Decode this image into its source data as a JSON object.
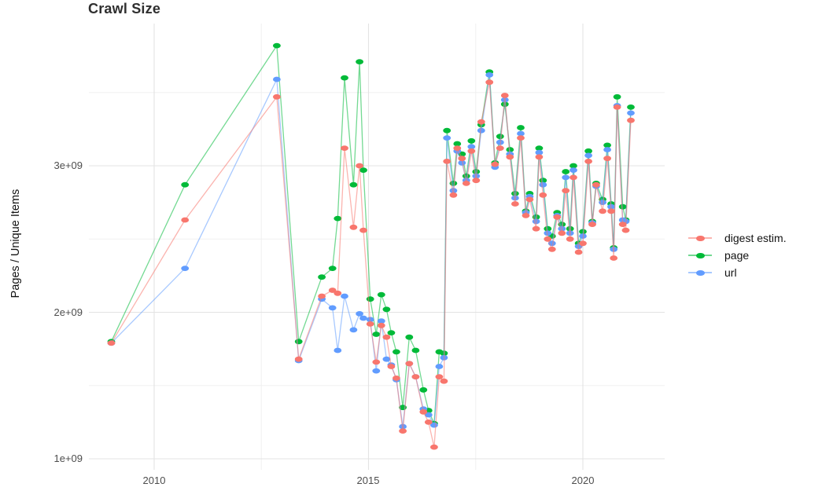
{
  "title": "Crawl Size",
  "y_axis_title": "Pages / Unique Items",
  "legend": {
    "position": "right",
    "items": [
      {
        "label": "digest estim.",
        "color": "#F8766D"
      },
      {
        "label": "page",
        "color": "#00BA38"
      },
      {
        "label": "url",
        "color": "#619CFF"
      }
    ]
  },
  "chart_data": {
    "type": "line",
    "title": "Crawl Size",
    "xlabel": "",
    "ylabel": "Pages / Unique Items",
    "x_units": "year (decimal)",
    "y_units": "count (billions; axis shows 1e+09 notation)",
    "xlim": [
      2008.48,
      2021.91
    ],
    "ylim_billions": [
      0.91,
      3.97
    ],
    "grid": true,
    "background": "#ffffff",
    "gridline_major_color": "#e3e3e3",
    "gridline_minor_color": "#f0f0f0",
    "x_ticks": [
      {
        "label": "2010",
        "value": 2010
      },
      {
        "label": "2015",
        "value": 2015
      },
      {
        "label": "2020",
        "value": 2020
      }
    ],
    "y_ticks": [
      {
        "label": "1e+09",
        "value": 1
      },
      {
        "label": "2e+09",
        "value": 2
      },
      {
        "label": "3e+09",
        "value": 3
      }
    ],
    "x_minor": [
      2012.5,
      2017.5
    ],
    "y_minor": [
      1.5,
      2.5,
      3.5
    ],
    "x": [
      2009.0,
      2010.72,
      2012.86,
      2013.37,
      2013.91,
      2014.16,
      2014.28,
      2014.44,
      2014.65,
      2014.79,
      2014.88,
      2015.04,
      2015.18,
      2015.3,
      2015.42,
      2015.53,
      2015.65,
      2015.8,
      2015.95,
      2016.1,
      2016.28,
      2016.4,
      2016.53,
      2016.65,
      2016.76,
      2016.83,
      2016.98,
      2017.07,
      2017.18,
      2017.28,
      2017.4,
      2017.51,
      2017.63,
      2017.82,
      2017.95,
      2018.07,
      2018.18,
      2018.3,
      2018.42,
      2018.55,
      2018.67,
      2018.76,
      2018.91,
      2018.98,
      2019.07,
      2019.18,
      2019.28,
      2019.4,
      2019.51,
      2019.6,
      2019.7,
      2019.78,
      2019.9,
      2020.0,
      2020.13,
      2020.22,
      2020.31,
      2020.46,
      2020.57,
      2020.66,
      2020.72,
      2020.8,
      2020.93,
      2021.0,
      2021.12
    ],
    "series": [
      {
        "name": "digest estim.",
        "color": "#F8766D",
        "values_billions": [
          1.79,
          2.63,
          3.47,
          1.68,
          2.11,
          2.15,
          2.13,
          3.12,
          2.58,
          3.0,
          2.56,
          1.92,
          1.66,
          1.91,
          1.83,
          1.63,
          1.55,
          1.19,
          1.65,
          1.56,
          1.32,
          1.25,
          1.08,
          1.56,
          1.53,
          3.03,
          2.8,
          3.12,
          3.05,
          2.88,
          3.1,
          2.9,
          3.3,
          3.57,
          3.01,
          3.12,
          3.48,
          3.06,
          2.74,
          3.19,
          2.66,
          2.77,
          2.57,
          3.06,
          2.8,
          2.5,
          2.43,
          2.65,
          2.54,
          2.83,
          2.5,
          2.92,
          2.41,
          2.47,
          3.03,
          2.6,
          2.87,
          2.69,
          3.05,
          2.69,
          2.37,
          3.4,
          2.6,
          2.56,
          3.31
        ]
      },
      {
        "name": "page",
        "color": "#00BA38",
        "values_billions": [
          1.8,
          2.87,
          3.82,
          1.8,
          2.24,
          2.3,
          2.64,
          3.6,
          2.87,
          3.71,
          2.97,
          2.09,
          1.85,
          2.12,
          2.02,
          1.86,
          1.73,
          1.35,
          1.83,
          1.74,
          1.47,
          1.33,
          1.24,
          1.73,
          1.72,
          3.24,
          2.88,
          3.15,
          3.08,
          2.93,
          3.17,
          2.96,
          3.28,
          3.64,
          3.02,
          3.2,
          3.42,
          3.11,
          2.81,
          3.26,
          2.69,
          2.81,
          2.65,
          3.12,
          2.9,
          2.57,
          2.52,
          2.68,
          2.6,
          2.96,
          2.57,
          3.0,
          2.47,
          2.55,
          3.1,
          2.62,
          2.88,
          2.77,
          3.14,
          2.74,
          2.44,
          3.47,
          2.72,
          2.63,
          3.4
        ]
      },
      {
        "name": "url",
        "color": "#619CFF",
        "values_billions": [
          1.79,
          2.3,
          3.59,
          1.67,
          2.09,
          2.03,
          1.74,
          2.11,
          1.88,
          1.99,
          1.96,
          1.95,
          1.6,
          1.94,
          1.68,
          1.64,
          1.54,
          1.22,
          1.65,
          1.56,
          1.34,
          1.3,
          1.23,
          1.63,
          1.69,
          3.19,
          2.83,
          3.1,
          3.02,
          2.9,
          3.13,
          2.93,
          3.24,
          3.62,
          2.99,
          3.16,
          3.45,
          3.08,
          2.78,
          3.22,
          2.68,
          2.79,
          2.62,
          3.09,
          2.87,
          2.54,
          2.47,
          2.66,
          2.57,
          2.92,
          2.54,
          2.97,
          2.45,
          2.52,
          3.07,
          2.61,
          2.86,
          2.75,
          3.11,
          2.72,
          2.43,
          3.41,
          2.63,
          2.62,
          3.36
        ]
      }
    ],
    "draw_order": [
      "page",
      "url",
      "digest estim."
    ],
    "line_opacity": 0.55,
    "marker": "ellipse"
  }
}
